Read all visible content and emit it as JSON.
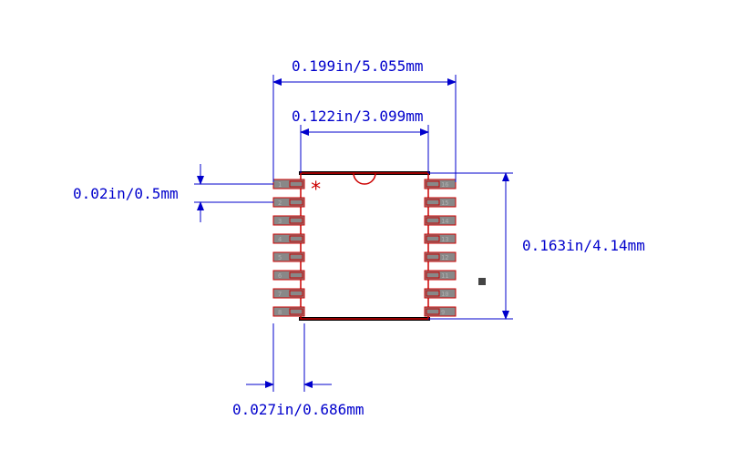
{
  "dimensions": {
    "overall_width": "0.199in/5.055mm",
    "body_width": "0.122in/3.099mm",
    "body_height": "0.163in/4.14mm",
    "pin_pitch": "0.02in/0.5mm",
    "pin_width": "0.027in/0.686mm"
  },
  "chip": {
    "pins_per_side": 8,
    "pin_numbers_left": [
      "1",
      "2",
      "3",
      "4",
      "5",
      "6",
      "7",
      "8"
    ],
    "pin_numbers_right": [
      "16",
      "15",
      "14",
      "13",
      "12",
      "11",
      "10",
      "9"
    ],
    "marker": "*"
  },
  "colors": {
    "dimension": "#0000cc",
    "outline": "#cc0000",
    "pad_fill": "#888888",
    "bar": "#000000",
    "text_pin": "#b0b0b0",
    "origin": "#444444"
  },
  "fontsizes": {
    "dim_label": 16,
    "marker": 22
  }
}
